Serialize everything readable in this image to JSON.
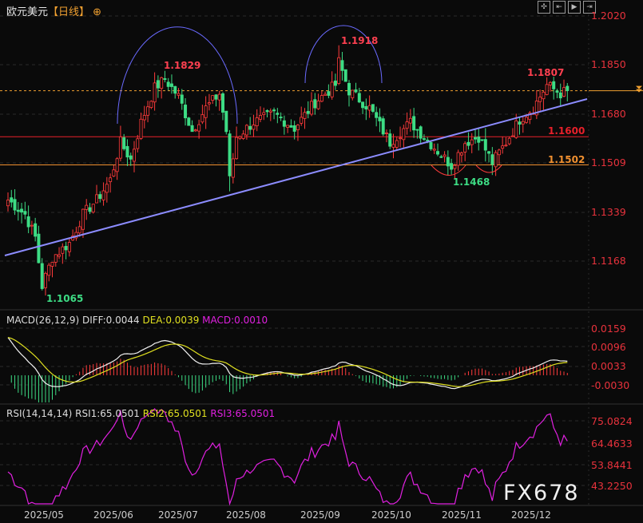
{
  "header": {
    "symbol": "欧元美元",
    "period": "【日线】",
    "add_icon": "crosshair-circle-icon"
  },
  "toolbar": {
    "icons": [
      "move-icon",
      "zoom-in-icon",
      "play-icon",
      "fit-right-icon"
    ]
  },
  "price_axis": [
    "1.2020",
    "1.1850",
    "1.1680",
    "1.1509",
    "1.1339",
    "1.1168"
  ],
  "annotations": {
    "low1": "1.1065",
    "high1": "1.1829",
    "high2": "1.1918",
    "low2": "1.1468",
    "high3": "1.1807",
    "level1": "1.1600",
    "level2": "1.1502"
  },
  "colors": {
    "up": "#ff3b3b",
    "down": "#3ddc84",
    "level1": "#e8202a",
    "level2": "#f09030",
    "trend": "#8c8cff",
    "arc": "#6a6aff",
    "current": "#f0a030"
  },
  "macd": {
    "label": "MACD(26,12,9)",
    "diff": "DIFF:0.0044",
    "dea": "DEA:0.0039",
    "macd": "MACD:0.0010",
    "axis": [
      "0.0159",
      "0.0096",
      "0.0033",
      "-0.0030"
    ]
  },
  "rsi": {
    "label": "RSI(14,14,14)",
    "rsi1": "RSI1:65.0501",
    "rsi2": "RSI2:65.0501",
    "rsi3": "RSI3:65.0501",
    "axis": [
      "75.0824",
      "64.4633",
      "53.8441",
      "43.2250"
    ]
  },
  "dates": [
    "2025/05",
    "2025/06",
    "2025/07",
    "2025/08",
    "2025/09",
    "2025/10",
    "2025/11",
    "2025/12"
  ],
  "watermark": "FX678",
  "chart_data": {
    "type": "candlestick",
    "symbol": "EUR/USD daily",
    "ylim": [
      1.1,
      1.205
    ],
    "levels": [
      1.16,
      1.1502
    ],
    "current_price": 1.176,
    "close_anchors": [
      [
        0,
        1.138
      ],
      [
        5,
        1.133
      ],
      [
        8,
        1.125
      ],
      [
        10,
        1.108
      ],
      [
        13,
        1.118
      ],
      [
        18,
        1.123
      ],
      [
        22,
        1.133
      ],
      [
        26,
        1.138
      ],
      [
        30,
        1.145
      ],
      [
        33,
        1.158
      ],
      [
        36,
        1.152
      ],
      [
        39,
        1.165
      ],
      [
        43,
        1.177
      ],
      [
        46,
        1.18
      ],
      [
        50,
        1.174
      ],
      [
        54,
        1.162
      ],
      [
        58,
        1.17
      ],
      [
        62,
        1.175
      ],
      [
        64,
        1.162
      ],
      [
        65,
        1.145
      ],
      [
        67,
        1.16
      ],
      [
        72,
        1.165
      ],
      [
        78,
        1.168
      ],
      [
        84,
        1.163
      ],
      [
        90,
        1.172
      ],
      [
        96,
        1.178
      ],
      [
        97,
        1.186
      ],
      [
        100,
        1.176
      ],
      [
        106,
        1.17
      ],
      [
        112,
        1.158
      ],
      [
        118,
        1.165
      ],
      [
        122,
        1.16
      ],
      [
        126,
        1.155
      ],
      [
        130,
        1.15
      ],
      [
        134,
        1.158
      ],
      [
        138,
        1.16
      ],
      [
        142,
        1.151
      ],
      [
        146,
        1.158
      ],
      [
        150,
        1.166
      ],
      [
        154,
        1.17
      ],
      [
        158,
        1.178
      ],
      [
        162,
        1.175
      ],
      [
        164,
        1.176
      ]
    ]
  }
}
